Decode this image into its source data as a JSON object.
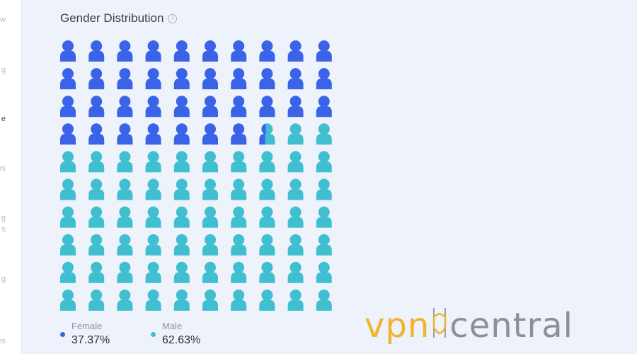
{
  "sidebar": {
    "items": [
      {
        "label": "w",
        "active": false
      },
      {
        "label": "g",
        "active": false
      },
      {
        "label": "e",
        "active": true
      },
      {
        "label": "ors",
        "active": false
      },
      {
        "label": "g",
        "active": false
      },
      {
        "label": "s",
        "active": false
      },
      {
        "label": "g",
        "active": false
      },
      {
        "label": "gies",
        "active": false
      }
    ]
  },
  "widget": {
    "title": "Gender Distribution",
    "info_icon": "info-icon"
  },
  "chart_data": {
    "type": "pictogram",
    "total_icons": 100,
    "rows": 10,
    "cols": 10,
    "icon": "person-icon",
    "series": [
      {
        "name": "Female",
        "value": 37.37,
        "label": "37.37%",
        "color": "#3a63e8"
      },
      {
        "name": "Male",
        "value": 62.63,
        "label": "62.63%",
        "color": "#3fbfcf"
      }
    ]
  },
  "legend": {
    "items": [
      {
        "label": "Female",
        "value": "37.37%",
        "color": "#3a63e8"
      },
      {
        "label": "Male",
        "value": "62.63%",
        "color": "#3fbfcf"
      }
    ]
  },
  "watermark": {
    "part1": "vpn",
    "part2": "central",
    "color1": "#f0b42e",
    "color2": "#8b8f96"
  }
}
